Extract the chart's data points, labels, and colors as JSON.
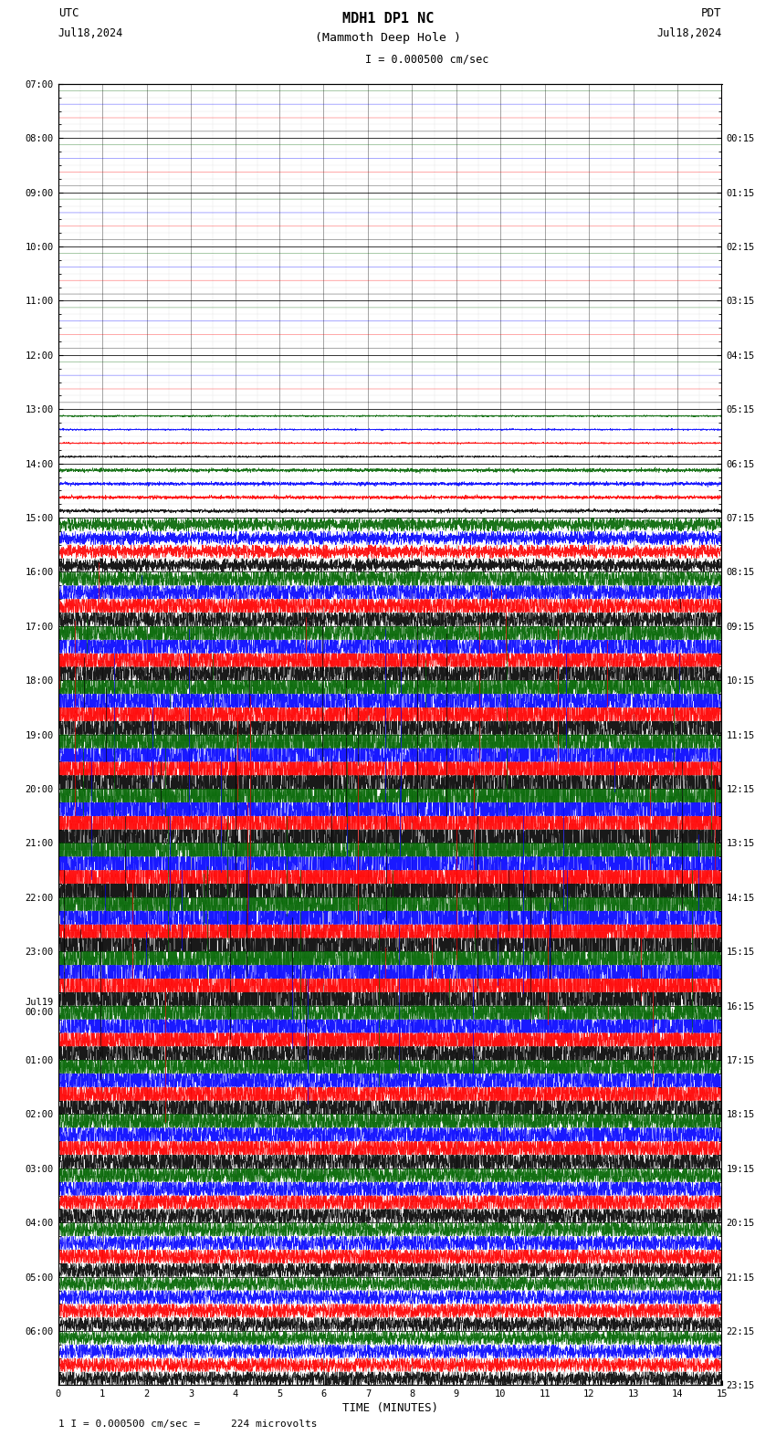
{
  "title_line1": "MDH1 DP1 NC",
  "title_line2": "(Mammoth Deep Hole )",
  "title_scale": "I = 0.000500 cm/sec",
  "left_header_line1": "UTC",
  "left_header_line2": "Jul18,2024",
  "right_header_line1": "PDT",
  "right_header_line2": "Jul18,2024",
  "xlabel": "TIME (MINUTES)",
  "footer": "1 I = 0.000500 cm/sec =     224 microvolts",
  "utc_times": [
    "07:00",
    "08:00",
    "09:00",
    "10:00",
    "11:00",
    "12:00",
    "13:00",
    "14:00",
    "15:00",
    "16:00",
    "17:00",
    "18:00",
    "19:00",
    "20:00",
    "21:00",
    "22:00",
    "23:00",
    "Jul19\n00:00",
    "01:00",
    "02:00",
    "03:00",
    "04:00",
    "05:00",
    "06:00"
  ],
  "pdt_times": [
    "00:15",
    "01:15",
    "02:15",
    "03:15",
    "04:15",
    "05:15",
    "06:15",
    "07:15",
    "08:15",
    "09:15",
    "10:15",
    "11:15",
    "12:15",
    "13:15",
    "14:15",
    "15:15",
    "16:15",
    "17:15",
    "18:15",
    "19:15",
    "20:15",
    "21:15",
    "22:15",
    "23:15"
  ],
  "n_rows": 24,
  "n_minutes": 15,
  "background_color": "#ffffff",
  "sub_channels": 4,
  "channel_colors": [
    "#000000",
    "#ff0000",
    "#0000ff",
    "#006400"
  ],
  "amplitudes": [
    0.005,
    0.005,
    0.005,
    0.005,
    0.005,
    0.005,
    0.007,
    0.015,
    0.06,
    0.12,
    0.18,
    0.22,
    0.28,
    0.35,
    0.38,
    0.35,
    0.3,
    0.22,
    0.18,
    0.15,
    0.12,
    0.1,
    0.09,
    0.08
  ],
  "spike_amplitudes": [
    0.0,
    0.0,
    0.0,
    0.0,
    0.0,
    0.0,
    0.0,
    0.05,
    0.2,
    0.5,
    0.8,
    1.2,
    1.8,
    2.5,
    2.2,
    2.0,
    1.8,
    1.4,
    1.2,
    1.0,
    0.8,
    0.6,
    0.5,
    0.4
  ]
}
